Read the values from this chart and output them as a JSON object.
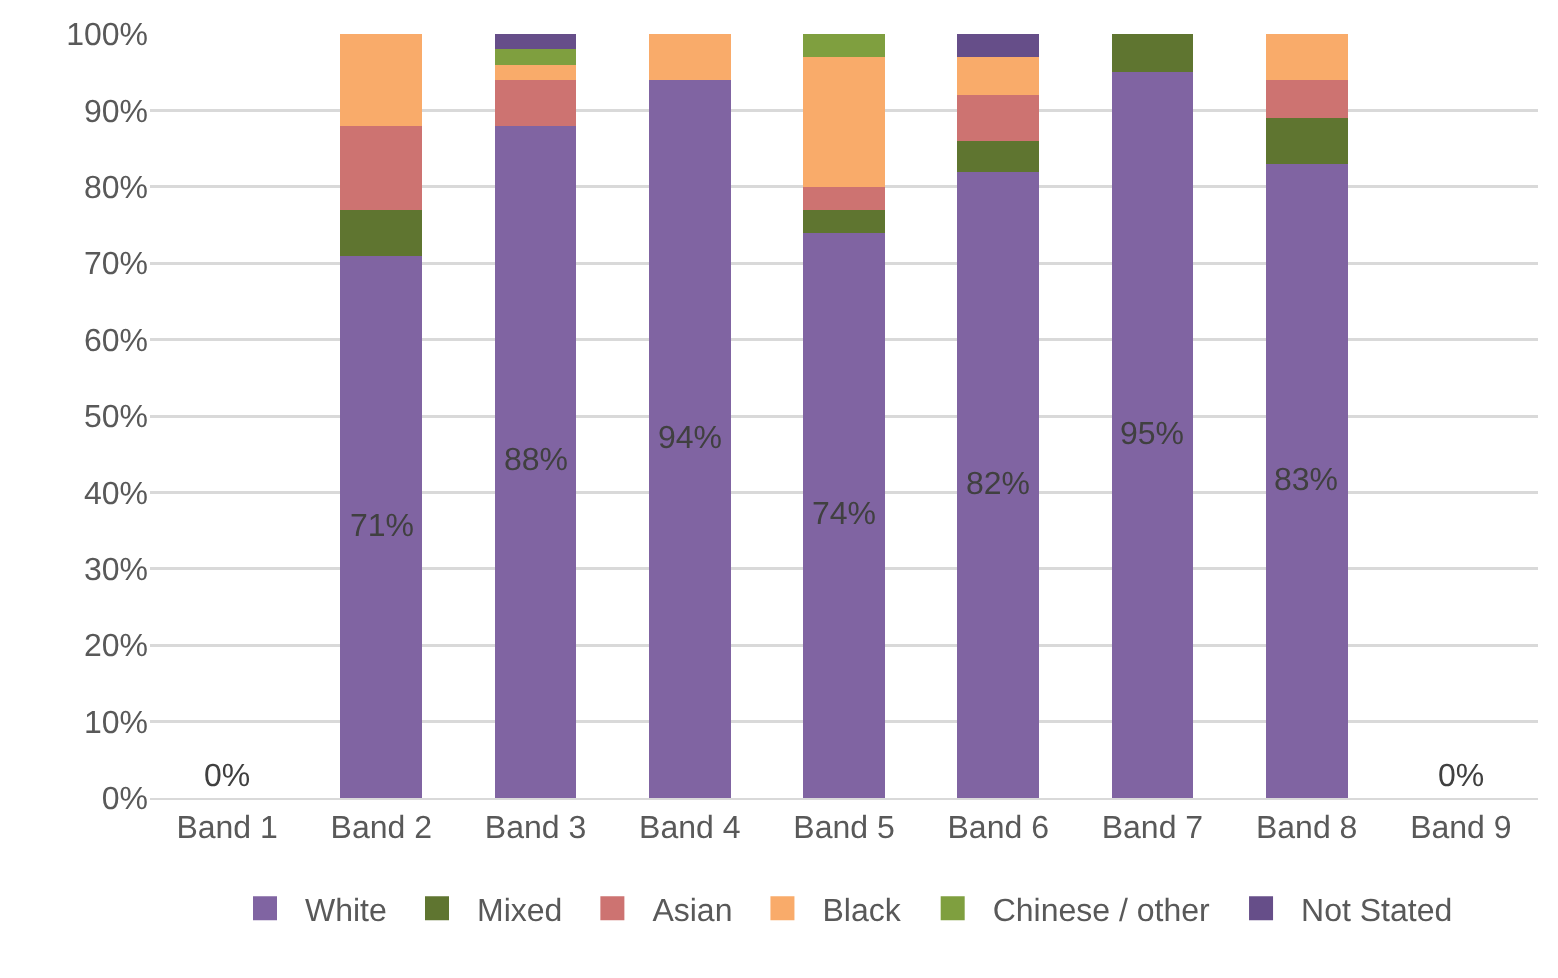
{
  "chart_data": {
    "type": "bar",
    "stacked": true,
    "categories": [
      "Band 1",
      "Band 2",
      "Band 3",
      "Band 4",
      "Band 5",
      "Band 6",
      "Band 7",
      "Band 8",
      "Band 9"
    ],
    "series": [
      {
        "name": "White",
        "color": "#8064a2",
        "values": [
          0,
          71,
          88,
          94,
          74,
          82,
          95,
          83,
          0
        ],
        "value_labels": [
          "0%",
          "71%",
          "88%",
          "94%",
          "74%",
          "82%",
          "95%",
          "83%",
          "0%"
        ]
      },
      {
        "name": "Mixed",
        "color": "#5f7530",
        "values": [
          0,
          6,
          0,
          0,
          3,
          4,
          5,
          6,
          0
        ]
      },
      {
        "name": "Asian",
        "color": "#cd7371",
        "values": [
          0,
          11,
          6,
          0,
          3,
          6,
          0,
          5,
          0
        ]
      },
      {
        "name": "Black",
        "color": "#f9ab6a",
        "values": [
          0,
          12,
          2,
          6,
          17,
          5,
          0,
          6,
          0
        ]
      },
      {
        "name": "Chinese / other",
        "color": "#7f9f3f",
        "values": [
          0,
          0,
          2,
          0,
          3,
          0,
          0,
          0,
          0
        ]
      },
      {
        "name": "Not Stated",
        "color": "#664e89",
        "values": [
          0,
          0,
          2,
          0,
          0,
          3,
          0,
          0,
          0
        ]
      }
    ],
    "ylim": [
      0,
      100
    ],
    "yticks": [
      {
        "value": 0,
        "label": "0%"
      },
      {
        "value": 10,
        "label": "10%"
      },
      {
        "value": 20,
        "label": "20%"
      },
      {
        "value": 30,
        "label": "30%"
      },
      {
        "value": 40,
        "label": "40%"
      },
      {
        "value": 50,
        "label": "50%"
      },
      {
        "value": 60,
        "label": "60%"
      },
      {
        "value": 70,
        "label": "70%"
      },
      {
        "value": 80,
        "label": "80%"
      },
      {
        "value": 90,
        "label": "90%"
      },
      {
        "value": 100,
        "label": "100%"
      }
    ],
    "grid": "y",
    "legend": "bottom"
  }
}
